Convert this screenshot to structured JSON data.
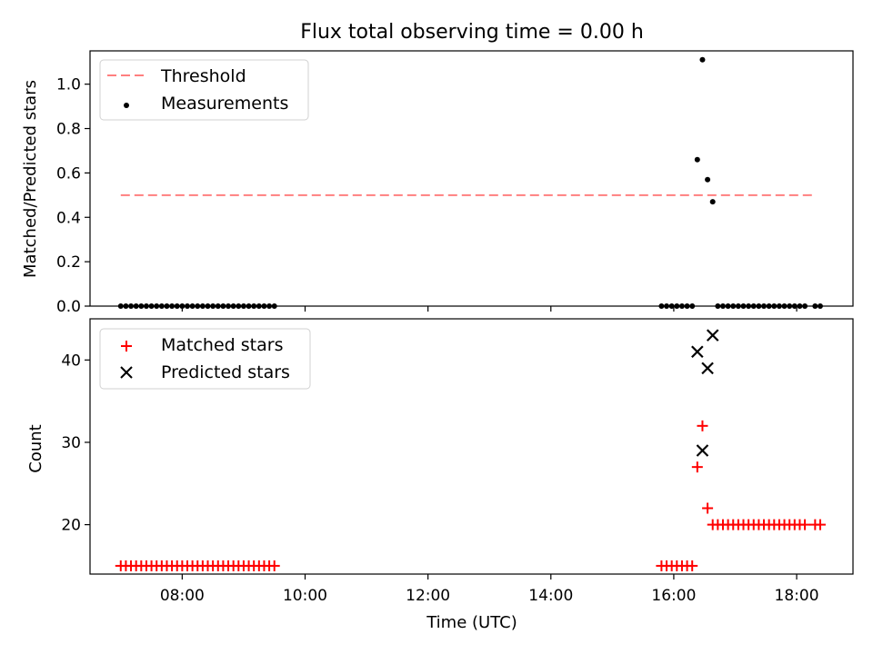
{
  "chart_data": [
    {
      "type": "scatter",
      "title": "Flux total observing time = 0.00 h",
      "ylabel": "Matched/Predicted stars",
      "xlabel": "",
      "ylim": [
        0,
        1.15
      ],
      "yticks": [
        "0.0",
        "0.2",
        "0.4",
        "0.6",
        "0.8",
        "1.0"
      ],
      "yticks_values": [
        0,
        0.2,
        0.4,
        0.6,
        0.8,
        1.0
      ],
      "legend_position": "upper-left",
      "threshold": {
        "name": "Threshold",
        "y": 0.5,
        "x_range": [
          "07:00",
          "18:18"
        ],
        "color": "#ff7f7f"
      },
      "series": [
        {
          "name": "Measurements",
          "color": "#000000",
          "x": [
            "07:00",
            "07:05",
            "07:10",
            "07:15",
            "07:20",
            "07:25",
            "07:30",
            "07:35",
            "07:40",
            "07:45",
            "07:50",
            "07:55",
            "08:00",
            "08:05",
            "08:10",
            "08:15",
            "08:20",
            "08:25",
            "08:30",
            "08:35",
            "08:40",
            "08:45",
            "08:50",
            "08:55",
            "09:00",
            "09:05",
            "09:10",
            "09:15",
            "09:20",
            "09:25",
            "09:30",
            "15:48",
            "15:53",
            "15:58",
            "16:03",
            "16:08",
            "16:13",
            "16:18",
            "16:23",
            "16:28",
            "16:33",
            "16:38",
            "16:43",
            "16:48",
            "16:53",
            "16:58",
            "17:03",
            "17:08",
            "17:13",
            "17:18",
            "17:23",
            "17:28",
            "17:33",
            "17:38",
            "17:43",
            "17:48",
            "17:53",
            "17:58",
            "18:03",
            "18:08",
            "18:18",
            "18:23"
          ],
          "values": [
            0,
            0,
            0,
            0,
            0,
            0,
            0,
            0,
            0,
            0,
            0,
            0,
            0,
            0,
            0,
            0,
            0,
            0,
            0,
            0,
            0,
            0,
            0,
            0,
            0,
            0,
            0,
            0,
            0,
            0,
            0,
            0,
            0,
            0,
            0,
            0,
            0,
            0,
            0.66,
            1.11,
            0.57,
            0.47,
            0,
            0,
            0,
            0,
            0,
            0,
            0,
            0,
            0,
            0,
            0,
            0,
            0,
            0,
            0,
            0,
            0,
            0,
            0,
            0
          ]
        }
      ]
    },
    {
      "type": "scatter",
      "title": "",
      "xlabel": "Time (UTC)",
      "ylabel": "Count",
      "ylim": [
        14,
        45
      ],
      "yticks": [
        "20",
        "30",
        "40"
      ],
      "yticks_values": [
        20,
        30,
        40
      ],
      "xticks": [
        "08:00",
        "10:00",
        "12:00",
        "14:00",
        "16:00",
        "18:00"
      ],
      "xlim": [
        "06:30",
        "18:55"
      ],
      "legend_position": "upper-left",
      "series": [
        {
          "name": "Matched stars",
          "color": "#ff0000",
          "marker": "plus",
          "x": [
            "07:00",
            "07:05",
            "07:10",
            "07:15",
            "07:20",
            "07:25",
            "07:30",
            "07:35",
            "07:40",
            "07:45",
            "07:50",
            "07:55",
            "08:00",
            "08:05",
            "08:10",
            "08:15",
            "08:20",
            "08:25",
            "08:30",
            "08:35",
            "08:40",
            "08:45",
            "08:50",
            "08:55",
            "09:00",
            "09:05",
            "09:10",
            "09:15",
            "09:20",
            "09:25",
            "09:30",
            "15:48",
            "15:53",
            "15:58",
            "16:03",
            "16:08",
            "16:13",
            "16:18",
            "16:23",
            "16:28",
            "16:33",
            "16:38",
            "16:43",
            "16:48",
            "16:53",
            "16:58",
            "17:03",
            "17:08",
            "17:13",
            "17:18",
            "17:23",
            "17:28",
            "17:33",
            "17:38",
            "17:43",
            "17:48",
            "17:53",
            "17:58",
            "18:03",
            "18:08",
            "18:18",
            "18:23"
          ],
          "values": [
            15,
            15,
            15,
            15,
            15,
            15,
            15,
            15,
            15,
            15,
            15,
            15,
            15,
            15,
            15,
            15,
            15,
            15,
            15,
            15,
            15,
            15,
            15,
            15,
            15,
            15,
            15,
            15,
            15,
            15,
            15,
            15,
            15,
            15,
            15,
            15,
            15,
            15,
            27,
            32,
            22,
            20,
            20,
            20,
            20,
            20,
            20,
            20,
            20,
            20,
            20,
            20,
            20,
            20,
            20,
            20,
            20,
            20,
            20,
            20,
            20,
            20
          ]
        },
        {
          "name": "Predicted stars",
          "color": "#000000",
          "marker": "x",
          "x": [
            "16:23",
            "16:28",
            "16:33",
            "16:38"
          ],
          "values": [
            41,
            29,
            39,
            43
          ]
        }
      ]
    }
  ]
}
